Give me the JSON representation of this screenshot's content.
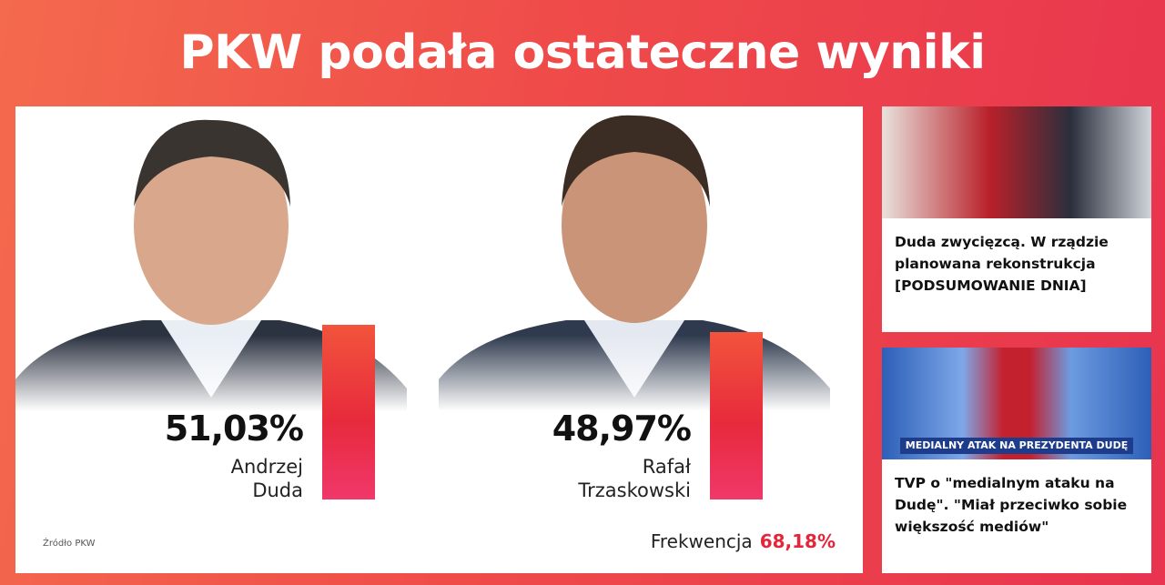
{
  "header": {
    "title": "PKW podała ostateczne wyniki"
  },
  "results": {
    "candidates": [
      {
        "value": 51.03,
        "label": "51,03%",
        "name_lines": [
          "Andrzej",
          "Duda"
        ]
      },
      {
        "value": 48.97,
        "label": "48,97%",
        "name_lines": [
          "Rafał",
          "Trzaskowski"
        ]
      }
    ],
    "source": "Źródło PKW",
    "turnout": {
      "label": "Frekwencja",
      "value": "68,18%"
    }
  },
  "sidebar": [
    {
      "title": "Duda zwycięzcą. W rządzie planowana rekonstrukcja [PODSUMOWANIE DNIA]"
    },
    {
      "title": "TVP o \"medialnym ataku na Dudę\". \"Miał przeciwko sobie większość mediów\"",
      "banner": "MEDIALNY ATAK NA PREZYDENTA DUDĘ"
    }
  ]
}
